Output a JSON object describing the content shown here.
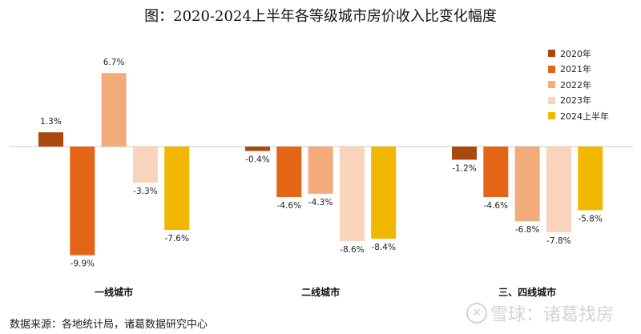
{
  "title": "图：2020-2024上半年各等级城市房价收入比变化幅度",
  "source": "数据来源：各地统计局，诸葛数据研究中心",
  "watermark": {
    "icon": "snowball-logo-icon",
    "text": "雪球：诸葛找房"
  },
  "chart_data": {
    "type": "bar",
    "title": "图：2020-2024上半年各等级城市房价收入比变化幅度",
    "xlabel": "",
    "ylabel": "",
    "unit": "%",
    "ylim": [
      -10.5,
      9
    ],
    "grid": false,
    "legend_position": "top-right",
    "categories": [
      "一线城市",
      "二线城市",
      "三、四线城市"
    ],
    "series": [
      {
        "name": "2020年",
        "color": "#a84a0d",
        "values": [
          1.3,
          -0.4,
          -1.2
        ],
        "labels": [
          "1.3%",
          "-0.4%",
          "-1.2%"
        ]
      },
      {
        "name": "2021年",
        "color": "#e46516",
        "values": [
          -9.9,
          -4.6,
          -4.6
        ],
        "labels": [
          "-9.9%",
          "-4.6%",
          "-4.6%"
        ]
      },
      {
        "name": "2022年",
        "color": "#f4ab7b",
        "values": [
          6.7,
          -4.3,
          -6.8
        ],
        "labels": [
          "6.7%",
          "-4.3%",
          "-6.8%"
        ]
      },
      {
        "name": "2023年",
        "color": "#f9d3bb",
        "values": [
          -3.3,
          -8.6,
          -7.8
        ],
        "labels": [
          "-3.3%",
          "-8.6%",
          "-7.8%"
        ]
      },
      {
        "name": "2024上半年",
        "color": "#f2b700",
        "values": [
          -7.6,
          -8.4,
          -5.8
        ],
        "labels": [
          "-7.6%",
          "-8.4%",
          "-5.8%"
        ]
      }
    ]
  }
}
